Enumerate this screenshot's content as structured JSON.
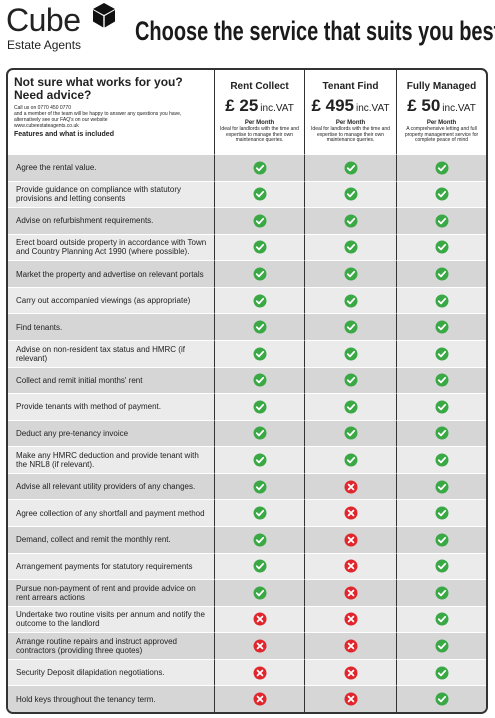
{
  "header": {
    "brand": "Cube",
    "brand_sub": "Estate Agents",
    "title": "Choose the service that suits you best"
  },
  "intro": {
    "heading": "Not sure what works for you? Need advice?",
    "lines": [
      "Call us on 0770 450 0770",
      "and a member of the team will be happy to answer any questions you have, alternatively see our FAQ's on our website",
      "www.cubeestateagents.co.uk"
    ],
    "features_label": "Features and what is included"
  },
  "plans": [
    {
      "name": "Rent Collect",
      "price": "£ 25",
      "vat": "inc.VAT",
      "period": "Per Month",
      "description": "Ideal for landlords with the time and expertise to manage their own maintenance queries."
    },
    {
      "name": "Tenant Find",
      "price": "£ 495",
      "vat": "inc.VAT",
      "period": "Per Month",
      "description": "Ideal for landlords with the time and expertise to manage their own maintenance queries."
    },
    {
      "name": "Fully Managed",
      "price": "£ 50",
      "vat": "inc.VAT",
      "period": "Per Month",
      "description": "A comprehensive letting and full property management service for complete peace of mind"
    }
  ],
  "rows": [
    {
      "feature": "Agree the rental value.",
      "included": [
        true,
        true,
        true
      ]
    },
    {
      "feature": "Provide guidance on compliance with statutory provisions and letting consents",
      "included": [
        true,
        true,
        true
      ]
    },
    {
      "feature": "Advise on refurbishment requirements.",
      "included": [
        true,
        true,
        true
      ]
    },
    {
      "feature": "Erect board outside property in accordance with Town and Country Planning Act 1990 (where possible).",
      "included": [
        true,
        true,
        true
      ]
    },
    {
      "feature": "Market the property and advertise on relevant portals",
      "included": [
        true,
        true,
        true
      ]
    },
    {
      "feature": "Carry out accompanied viewings (as appropriate)",
      "included": [
        true,
        true,
        true
      ]
    },
    {
      "feature": "Find tenants.",
      "included": [
        true,
        true,
        true
      ]
    },
    {
      "feature": "Advise on non-resident tax status and HMRC (if relevant)",
      "included": [
        true,
        true,
        true
      ]
    },
    {
      "feature": "Collect and remit initial months' rent",
      "included": [
        true,
        true,
        true
      ]
    },
    {
      "feature": "Provide tenants with method of payment.",
      "included": [
        true,
        true,
        true
      ]
    },
    {
      "feature": "Deduct any pre-tenancy invoice",
      "included": [
        true,
        true,
        true
      ]
    },
    {
      "feature": "Make any HMRC deduction and provide tenant with the NRL8 (if relevant).",
      "included": [
        true,
        true,
        true
      ]
    },
    {
      "feature": "Advise all relevant utility providers of any changes.",
      "included": [
        true,
        false,
        true
      ]
    },
    {
      "feature": "Agree collection of any shortfall and payment method",
      "included": [
        true,
        false,
        true
      ]
    },
    {
      "feature": "Demand, collect and remit the monthly rent.",
      "included": [
        true,
        false,
        true
      ]
    },
    {
      "feature": "Arrangement payments for statutory requirements",
      "included": [
        true,
        false,
        true
      ]
    },
    {
      "feature": "Pursue non-payment of rent and provide advice on rent arrears actions",
      "included": [
        true,
        false,
        true
      ]
    },
    {
      "feature": "Undertake two routine visits per annum and notify the outcome to the landlord",
      "included": [
        false,
        false,
        true
      ]
    },
    {
      "feature": "Arrange routine repairs and instruct approved contractors (providing three quotes)",
      "included": [
        false,
        false,
        true
      ]
    },
    {
      "feature": "Security Deposit dilapidation negotiations.",
      "included": [
        false,
        false,
        true
      ]
    },
    {
      "feature": "Hold keys throughout the tenancy term.",
      "included": [
        false,
        false,
        true
      ]
    }
  ]
}
